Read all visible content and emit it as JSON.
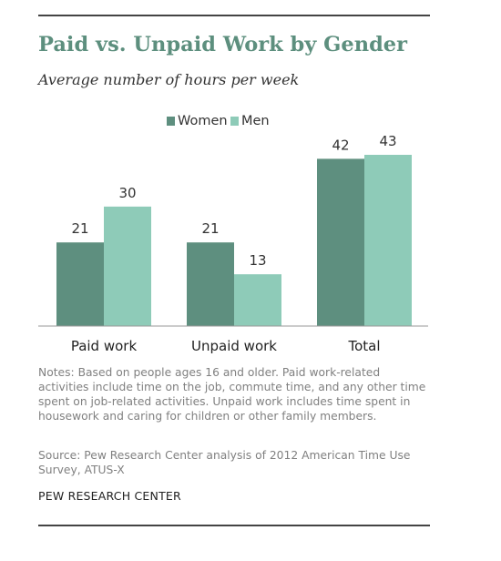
{
  "title": "Paid vs. Unpaid Work by Gender",
  "subtitle": "Average number of hours per week",
  "notes": "Notes: Based on people ages 16 and older. Paid work-related activities include time on the job, commute time, and any other time spent on job-related activities. Unpaid work includes time spent in housework and caring for children or other family members.",
  "source": "Source: Pew Research Center analysis of 2012 American Time Use Survey, ATUS-X",
  "org": "PEW RESEARCH CENTER",
  "colors": {
    "women": "#5e8f7f",
    "men": "#8ecbb8",
    "title": "#5d8f7e"
  },
  "chart_data": {
    "type": "bar",
    "categories": [
      "Paid work",
      "Unpaid work",
      "Total"
    ],
    "series": [
      {
        "name": "Women",
        "values": [
          21,
          21,
          42
        ]
      },
      {
        "name": "Men",
        "values": [
          30,
          13,
          43
        ]
      }
    ],
    "ylim": [
      0,
      43
    ],
    "legend": "top-center",
    "grid": false
  }
}
